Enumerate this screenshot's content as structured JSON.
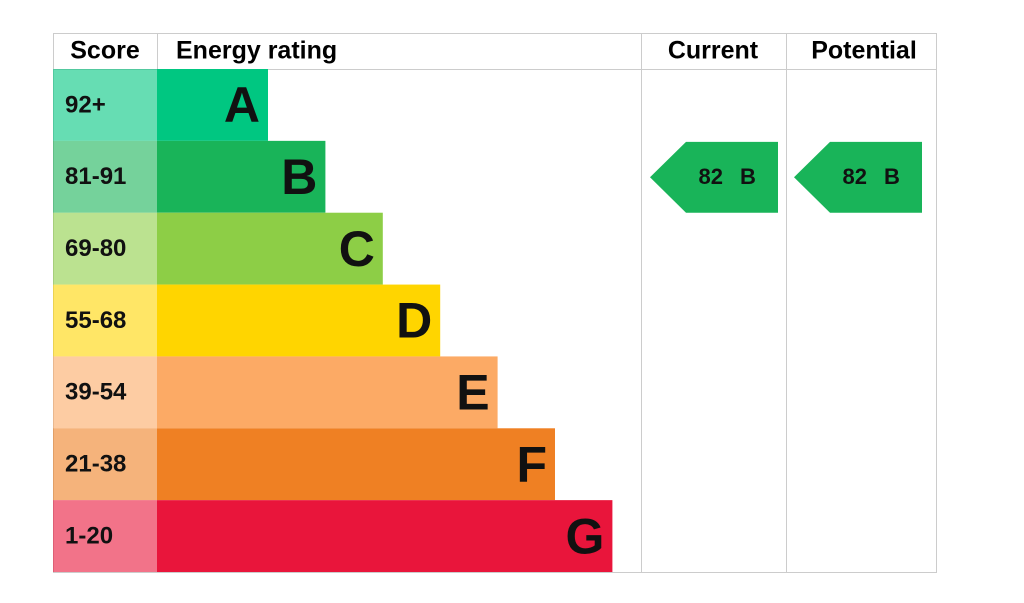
{
  "header": {
    "score": "Score",
    "energy_rating": "Energy rating",
    "current": "Current",
    "potential": "Potential"
  },
  "rows": [
    {
      "score": "92+",
      "band": "A",
      "color": "#00c781"
    },
    {
      "score": "81-91",
      "band": "B",
      "color": "#19b459"
    },
    {
      "score": "69-80",
      "band": "C",
      "color": "#8dce46"
    },
    {
      "score": "55-68",
      "band": "D",
      "color": "#ffd500"
    },
    {
      "score": "39-54",
      "band": "E",
      "color": "#fcaa65"
    },
    {
      "score": "21-38",
      "band": "F",
      "color": "#ef8023"
    },
    {
      "score": "1-20",
      "band": "G",
      "color": "#e9153b"
    }
  ],
  "current": {
    "value": 82,
    "band": "B"
  },
  "potential": {
    "value": 82,
    "band": "B"
  }
}
